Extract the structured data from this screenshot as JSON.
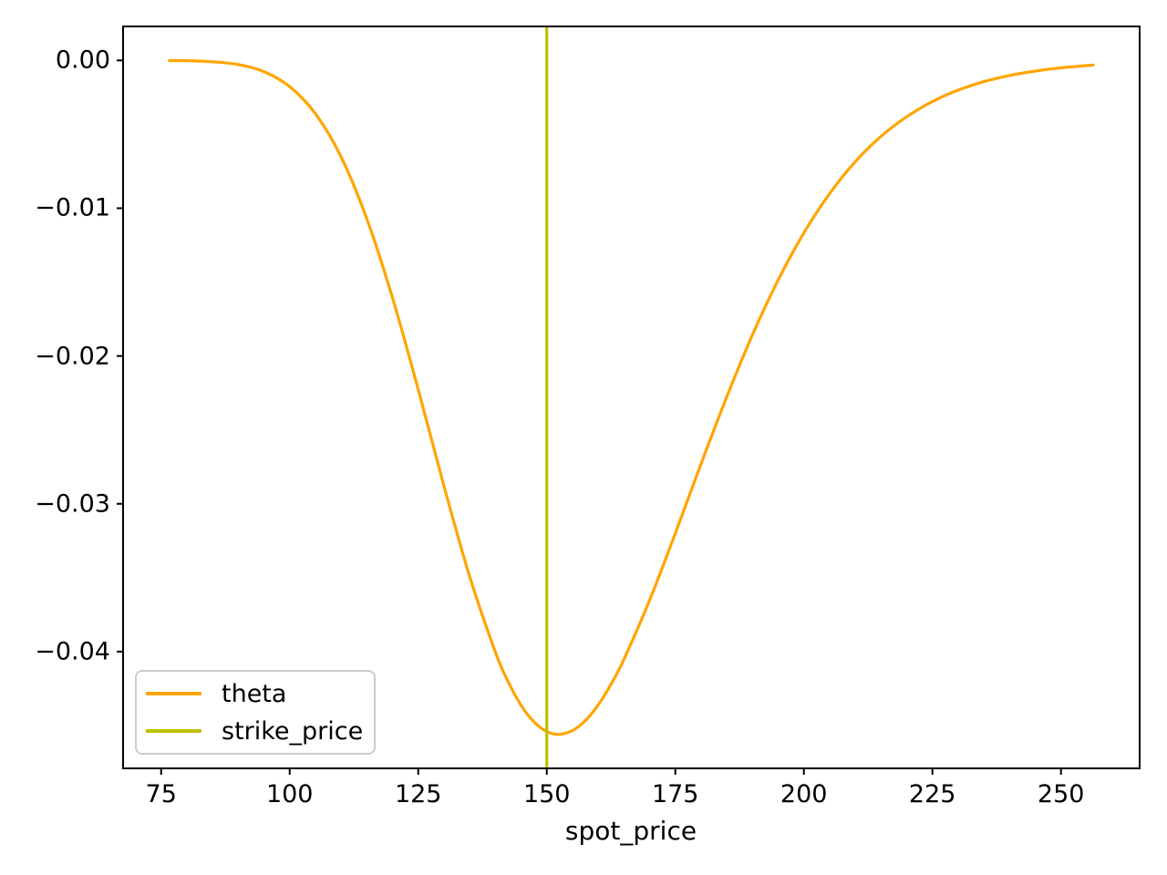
{
  "chart_data": {
    "type": "line",
    "title": "",
    "xlabel": "spot_price",
    "ylabel": "",
    "xlim": [
      67.6,
      265.3
    ],
    "ylim": [
      -0.0479,
      0.0023
    ],
    "grid": false,
    "x_ticks": [
      75,
      100,
      125,
      150,
      175,
      200,
      225,
      250
    ],
    "x_tick_labels": [
      "75",
      "100",
      "125",
      "150",
      "175",
      "200",
      "225",
      "250"
    ],
    "y_ticks": [
      0.0,
      -0.01,
      -0.02,
      -0.03,
      -0.04
    ],
    "y_tick_labels": [
      "0.00",
      "−0.01",
      "−0.02",
      "−0.03",
      "−0.04"
    ],
    "axis_color": "#000000",
    "series": [
      {
        "name": "theta",
        "color": "#FFA500",
        "x": [
          76.6,
          80,
          85,
          90,
          95,
          100,
          105,
          110,
          115,
          120,
          125,
          130,
          135,
          140,
          142.5,
          145,
          147.5,
          150,
          152.3,
          155,
          157.5,
          160,
          162.5,
          165,
          170,
          175,
          180,
          185,
          190,
          195,
          200,
          205,
          210,
          215,
          220,
          225,
          230,
          235,
          240,
          245,
          250,
          256.3
        ],
        "y": [
          -1e-05,
          -2e-05,
          -9e-05,
          -0.00028,
          -0.00076,
          -0.00177,
          -0.0036,
          -0.00652,
          -0.01071,
          -0.01606,
          -0.02226,
          -0.02878,
          -0.03491,
          -0.04003,
          -0.04204,
          -0.04363,
          -0.04475,
          -0.04541,
          -0.0456,
          -0.04534,
          -0.04467,
          -0.04361,
          -0.04221,
          -0.04053,
          -0.03652,
          -0.032,
          -0.0273,
          -0.02277,
          -0.01857,
          -0.01486,
          -0.01167,
          -0.00901,
          -0.00685,
          -0.00514,
          -0.00381,
          -0.00278,
          -0.00201,
          -0.00144,
          -0.00102,
          -0.00072,
          -0.0005,
          -0.00031
        ],
        "min_point": {
          "x": 152.3,
          "y": -0.0456
        }
      }
    ],
    "vline": {
      "name": "strike_price",
      "x": 150,
      "color": "#BFBF00"
    },
    "legend": {
      "position": "lower left",
      "entries": [
        {
          "label": "theta",
          "color": "#FFA500"
        },
        {
          "label": "strike_price",
          "color": "#BFBF00"
        }
      ]
    }
  }
}
